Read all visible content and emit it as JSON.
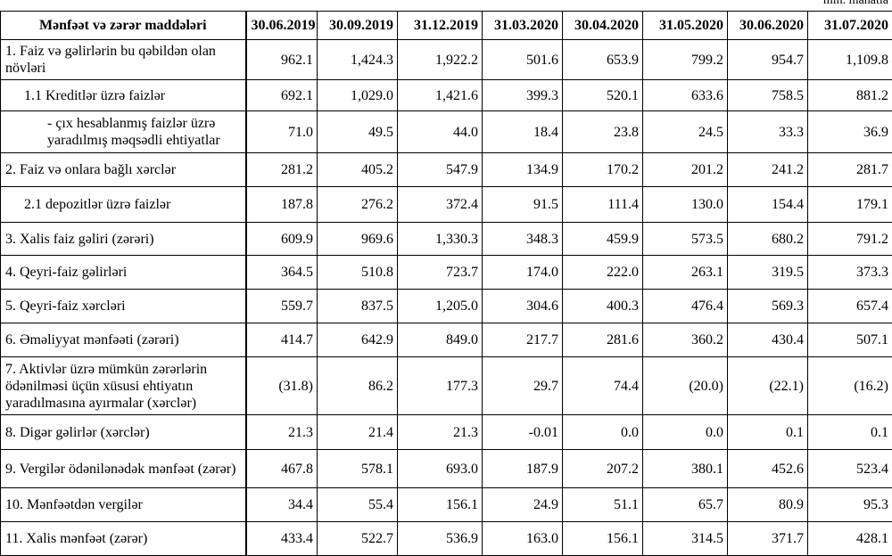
{
  "note": "mln. manatla",
  "table": {
    "header": [
      "Mənfəət və zərər maddələri",
      "30.06.2019",
      "30.09.2019",
      "31.12.2019",
      "31.03.2020",
      "30.04.2020",
      "31.05.2020",
      "30.06.2020",
      "31.07.2020"
    ],
    "rows": [
      [
        "1. Faiz və gəlirlərin bu qəbildən olan növləri",
        "962.1",
        "1,424.3",
        "1,922.2",
        "501.6",
        "653.9",
        "799.2",
        "954.7",
        "1,109.8"
      ],
      [
        "1.1 Kreditlər üzrə faizlər",
        "692.1",
        "1,029.0",
        "1,421.6",
        "399.3",
        "520.1",
        "633.6",
        "758.5",
        "881.2"
      ],
      [
        "- çıx hesablanmış faizlər üzrə yaradılmış məqsədli ehtiyatlar",
        "71.0",
        "49.5",
        "44.0",
        "18.4",
        "23.8",
        "24.5",
        "33.3",
        "36.9"
      ],
      [
        "2. Faiz və onlara bağlı xərclər",
        "281.2",
        "405.2",
        "547.9",
        "134.9",
        "170.2",
        "201.2",
        "241.2",
        "281.7"
      ],
      [
        "2.1 depozitlər üzrə faizlər",
        "187.8",
        "276.2",
        "372.4",
        "91.5",
        "111.4",
        "130.0",
        "154.4",
        "179.1"
      ],
      [
        "3. Xalis faiz gəliri (zərəri)",
        "609.9",
        "969.6",
        "1,330.3",
        "348.3",
        "459.9",
        "573.5",
        "680.2",
        "791.2"
      ],
      [
        "4. Qeyri-faiz gəlirləri",
        "364.5",
        "510.8",
        "723.7",
        "174.0",
        "222.0",
        "263.1",
        "319.5",
        "373.3"
      ],
      [
        "5. Qeyri-faiz xərcləri",
        "559.7",
        "837.5",
        "1,205.0",
        "304.6",
        "400.3",
        "476.4",
        "569.3",
        "657.4"
      ],
      [
        "6. Əməliyyat mənfəəti (zərəri)",
        "414.7",
        "642.9",
        "849.0",
        "217.7",
        "281.6",
        "360.2",
        "430.4",
        "507.1"
      ],
      [
        "7. Aktivlər üzrə mümkün zərərlərin ödənilməsi üçün xüsusi ehtiyatın yaradılmasına ayırmalar (xərclər)",
        "(31.8)",
        "86.2",
        "177.3",
        "29.7",
        "74.4",
        "(20.0)",
        "(22.1)",
        "(16.2)"
      ],
      [
        "8. Digər gəlirlər (xərclər)",
        "21.3",
        "21.4",
        "21.3",
        "-0.01",
        "0.0",
        "0.0",
        "0.1",
        "0.1"
      ],
      [
        "9. Vergilər ödənilənədək mənfəət (zərər)",
        "467.8",
        "578.1",
        "693.0",
        "187.9",
        "207.2",
        "380.1",
        "452.6",
        "523.4"
      ],
      [
        "10. Mənfəətdən vergilər",
        "34.4",
        "55.4",
        "156.1",
        "24.9",
        "51.1",
        "65.7",
        "80.9",
        "95.3"
      ],
      [
        "11. Xalis mənfəət (zərər)",
        "433.4",
        "522.7",
        "536.9",
        "163.0",
        "156.1",
        "314.5",
        "371.7",
        "428.1"
      ]
    ]
  }
}
